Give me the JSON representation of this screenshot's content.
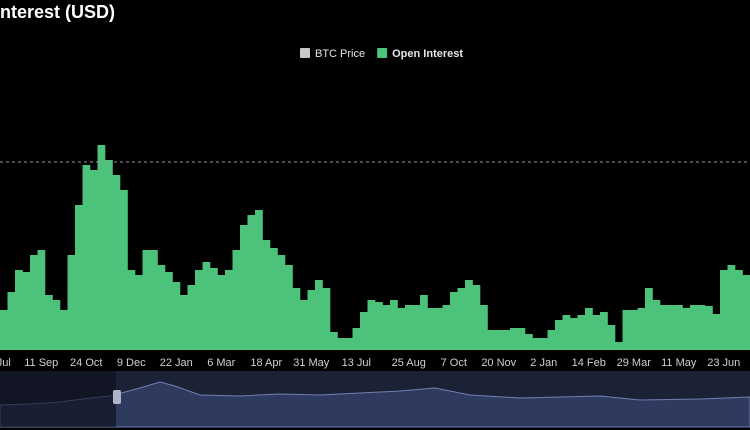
{
  "chart_data": {
    "type": "bar",
    "title": "nterest (USD)",
    "legend": [
      {
        "name": "BTC Price",
        "color": "#c8c8c8"
      },
      {
        "name": "Open Interest",
        "color": "#4cc27a"
      }
    ],
    "categories": [
      "Jul",
      null,
      null,
      null,
      null,
      "11 Sep",
      null,
      null,
      null,
      null,
      null,
      "24 Oct",
      null,
      null,
      null,
      null,
      null,
      "9 Dec",
      null,
      null,
      null,
      null,
      null,
      "22 Jan",
      null,
      null,
      null,
      null,
      null,
      "6 Mar",
      null,
      null,
      null,
      null,
      null,
      "18 Apr",
      null,
      null,
      null,
      null,
      null,
      "31 May",
      null,
      null,
      null,
      null,
      null,
      "13 Jul",
      null,
      null,
      null,
      null,
      null,
      null,
      "25 Aug",
      null,
      null,
      null,
      null,
      null,
      "7 Oct",
      null,
      null,
      null,
      null,
      null,
      "20 Nov",
      null,
      null,
      null,
      null,
      null,
      "2 Jan",
      null,
      null,
      null,
      null,
      null,
      "14 Feb",
      null,
      null,
      null,
      null,
      null,
      "29 Mar",
      null,
      null,
      null,
      null,
      null,
      "11 May",
      null,
      null,
      null,
      null,
      null,
      "23 Jun",
      null,
      null,
      null
    ],
    "series": [
      {
        "name": "Open Interest",
        "color": "#4cc27a",
        "values": [
          40,
          58,
          80,
          78,
          95,
          100,
          55,
          50,
          40,
          95,
          145,
          185,
          180,
          205,
          190,
          175,
          160,
          80,
          75,
          100,
          100,
          85,
          78,
          68,
          55,
          65,
          80,
          88,
          82,
          75,
          80,
          100,
          125,
          135,
          140,
          110,
          102,
          95,
          85,
          62,
          50,
          60,
          70,
          62,
          18,
          12,
          12,
          22,
          38,
          50,
          48,
          45,
          50,
          42,
          45,
          45,
          55,
          42,
          42,
          45,
          58,
          62,
          70,
          65,
          45,
          20,
          20,
          20,
          22,
          22,
          16,
          12,
          12,
          20,
          30,
          35,
          32,
          35,
          42,
          35,
          38,
          25,
          8,
          40,
          40,
          42,
          62,
          50,
          45,
          45,
          45,
          42,
          45,
          45,
          44,
          36,
          80,
          85,
          80,
          75
        ]
      }
    ],
    "ylim": [
      0,
      220
    ],
    "reference_line": 188
  }
}
